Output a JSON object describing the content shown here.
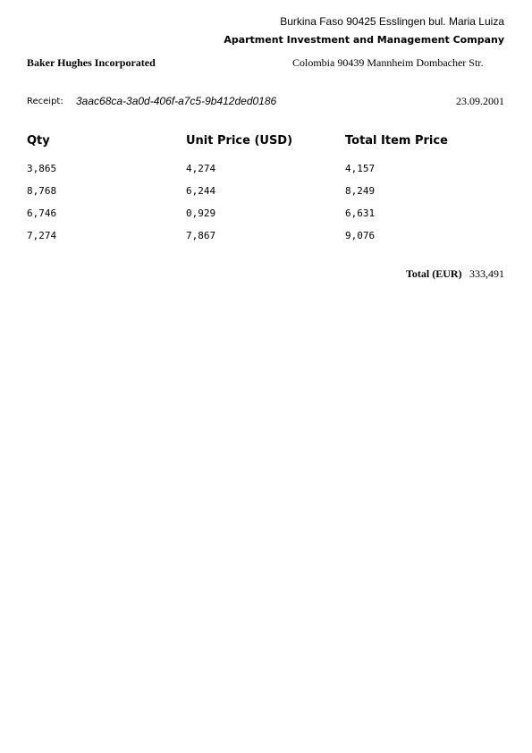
{
  "sender": {
    "address": "Burkina Faso 90425 Esslingen bul. Maria Luiza",
    "company": "Apartment Investment and Management Company"
  },
  "recipient": {
    "company": "Baker Hughes Incorporated",
    "address": "Colombia 90439 Mannheim Dombacher Str."
  },
  "receipt": {
    "label": "Receipt:",
    "id": "3aac68ca-3a0d-406f-a7c5-9b412ded0186",
    "date": "23.09.2001"
  },
  "table": {
    "headers": [
      "Qty",
      "Unit Price (USD)",
      "Total Item Price"
    ],
    "rows": [
      [
        "3,865",
        "4,274",
        "4,157"
      ],
      [
        "8,768",
        "6,244",
        "8,249"
      ],
      [
        "6,746",
        "0,929",
        "6,631"
      ],
      [
        "7,274",
        "7,867",
        "9,076"
      ]
    ]
  },
  "total": {
    "label": "Total (EUR)",
    "value": "333,491"
  }
}
